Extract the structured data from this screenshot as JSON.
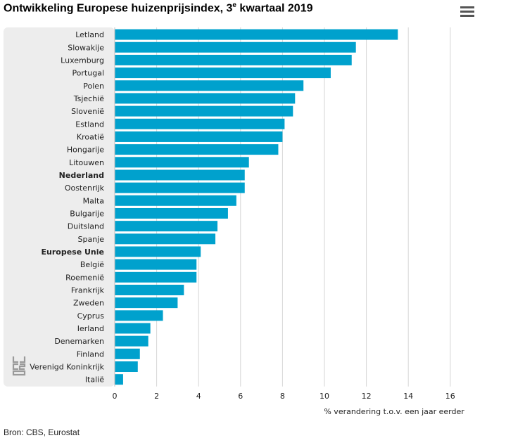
{
  "title_main": "Ontwikkeling Europese huizenprijsindex, 3",
  "title_sup": "e",
  "title_rest": " kwartaal 2019",
  "menu_icon": "hamburger-menu-icon",
  "source": "Bron: CBS, Eurostat",
  "colors": {
    "bar": "#00a1cd",
    "panel": "#ededed",
    "grid": "#d6d6d6"
  },
  "chart_data": {
    "type": "bar",
    "orientation": "horizontal",
    "categories": [
      "Letland",
      "Slowakije",
      "Luxemburg",
      "Portugal",
      "Polen",
      "Tsjechië",
      "Slovenië",
      "Estland",
      "Kroatië",
      "Hongarije",
      "Litouwen",
      "Nederland",
      "Oostenrijk",
      "Malta",
      "Bulgarije",
      "Duitsland",
      "Spanje",
      "Europese Unie",
      "België",
      "Roemenië",
      "Frankrijk",
      "Zweden",
      "Cyprus",
      "Ierland",
      "Denemarken",
      "Finland",
      "Verenigd Koninkrijk",
      "Italië"
    ],
    "bold_categories": [
      "Nederland",
      "Europese Unie"
    ],
    "values": [
      13.5,
      11.5,
      11.3,
      10.3,
      9.0,
      8.6,
      8.5,
      8.1,
      8.0,
      7.8,
      6.4,
      6.2,
      6.2,
      5.8,
      5.4,
      4.9,
      4.8,
      4.1,
      3.9,
      3.9,
      3.3,
      3.0,
      2.3,
      1.7,
      1.6,
      1.2,
      1.1,
      0.4
    ],
    "xlabel": "% verandering t.o.v. een jaar eerder",
    "ticks": [
      0,
      2,
      4,
      6,
      8,
      10,
      12,
      14,
      16
    ],
    "xlim": [
      0,
      16
    ],
    "grid": true
  }
}
